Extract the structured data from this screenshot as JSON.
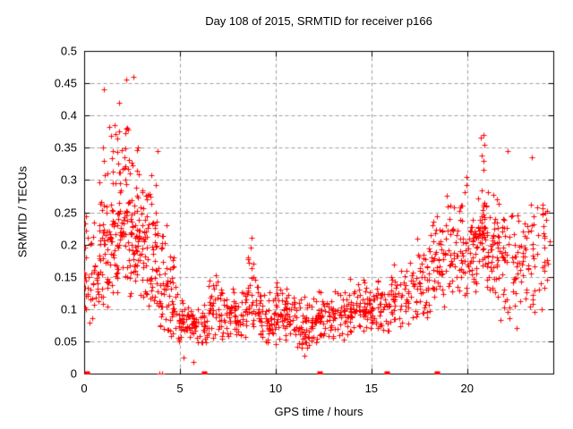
{
  "window": {
    "background": "#ffffff"
  },
  "chart_data": {
    "type": "scatter",
    "title": "Day 108 of 2015, SRMTID for receiver p166",
    "xlabel": "GPS time / hours",
    "ylabel": "SRMTID / TECUs",
    "xlim": [
      0,
      24.5
    ],
    "ylim": [
      0,
      0.5
    ],
    "xticks": {
      "values": [
        0,
        5,
        10,
        15,
        20
      ],
      "labels": [
        "0",
        "5",
        "10",
        "15",
        "20"
      ]
    },
    "yticks": {
      "values": [
        0,
        0.05,
        0.1,
        0.15,
        0.2,
        0.25,
        0.3,
        0.35,
        0.4,
        0.45,
        0.5
      ],
      "labels": [
        "0",
        "0.05",
        "0.1",
        "0.15",
        "0.2",
        "0.25",
        "0.3",
        "0.35",
        "0.4",
        "0.45",
        "0.5"
      ]
    },
    "grid": true,
    "legend": "none",
    "marker": "plus",
    "marker_color": "#ff0000",
    "axis_color": "#000000",
    "grid_color": "#a0a0a0",
    "seed": 108,
    "point_bins_format": [
      "hour_start",
      "hour_end",
      "y_min",
      "y_max",
      "count",
      "columns",
      "skew"
    ],
    "point_bins": [
      [
        0.0,
        0.35,
        0.06,
        0.26,
        22,
        2,
        1.2
      ],
      [
        0.35,
        0.8,
        0.08,
        0.25,
        24,
        3,
        1.2
      ],
      [
        0.8,
        1.3,
        0.1,
        0.44,
        46,
        4,
        1.5
      ],
      [
        1.3,
        1.8,
        0.11,
        0.42,
        50,
        4,
        1.4
      ],
      [
        1.8,
        2.35,
        0.12,
        0.46,
        56,
        4,
        1.4
      ],
      [
        2.35,
        2.85,
        0.11,
        0.42,
        54,
        4,
        1.4
      ],
      [
        2.85,
        3.35,
        0.1,
        0.35,
        44,
        4,
        1.3
      ],
      [
        3.35,
        3.85,
        0.08,
        0.34,
        40,
        4,
        1.4
      ],
      [
        3.85,
        4.35,
        0.06,
        0.25,
        34,
        4,
        1.4
      ],
      [
        4.35,
        4.85,
        0.05,
        0.19,
        34,
        4,
        1.3
      ],
      [
        4.85,
        5.5,
        0.04,
        0.13,
        40,
        5,
        1.1
      ],
      [
        5.5,
        6.5,
        0.04,
        0.12,
        52,
        6,
        1.1
      ],
      [
        6.5,
        7.5,
        0.05,
        0.16,
        56,
        6,
        1.2
      ],
      [
        7.5,
        8.5,
        0.05,
        0.14,
        56,
        6,
        1.1
      ],
      [
        8.5,
        9.1,
        0.06,
        0.21,
        32,
        3,
        1.4
      ],
      [
        9.1,
        10.0,
        0.04,
        0.14,
        58,
        6,
        1.1
      ],
      [
        10.0,
        11.0,
        0.05,
        0.15,
        60,
        6,
        1.2
      ],
      [
        11.0,
        12.0,
        0.03,
        0.12,
        58,
        6,
        1.1
      ],
      [
        12.0,
        13.0,
        0.04,
        0.13,
        58,
        6,
        1.1
      ],
      [
        13.0,
        14.0,
        0.05,
        0.15,
        56,
        6,
        1.2
      ],
      [
        14.0,
        15.0,
        0.06,
        0.18,
        54,
        6,
        1.3
      ],
      [
        15.0,
        16.0,
        0.06,
        0.16,
        50,
        6,
        1.2
      ],
      [
        16.0,
        17.0,
        0.07,
        0.18,
        50,
        6,
        1.2
      ],
      [
        17.0,
        18.0,
        0.08,
        0.22,
        50,
        5,
        1.3
      ],
      [
        18.0,
        18.7,
        0.09,
        0.26,
        40,
        4,
        1.3
      ],
      [
        18.7,
        19.3,
        0.1,
        0.3,
        36,
        3,
        1.4
      ],
      [
        19.3,
        20.0,
        0.12,
        0.32,
        40,
        3,
        1.4
      ],
      [
        20.0,
        20.5,
        0.12,
        0.28,
        36,
        3,
        1.3
      ],
      [
        20.5,
        21.0,
        0.13,
        0.37,
        46,
        3,
        1.4
      ],
      [
        21.0,
        21.5,
        0.12,
        0.3,
        40,
        3,
        1.3
      ],
      [
        21.5,
        22.3,
        0.08,
        0.31,
        46,
        4,
        1.3
      ],
      [
        22.3,
        23.2,
        0.1,
        0.27,
        46,
        4,
        1.2
      ],
      [
        23.2,
        24.3,
        0.09,
        0.33,
        44,
        4,
        1.3
      ]
    ],
    "extra_points": [
      [
        2.55,
        0.46
      ],
      [
        1.05,
        0.44
      ],
      [
        2.2,
        0.455
      ],
      [
        3.83,
        0.345
      ],
      [
        20.85,
        0.37
      ],
      [
        20.9,
        0.355
      ],
      [
        22.1,
        0.345
      ],
      [
        23.4,
        0.335
      ],
      [
        8.75,
        0.21
      ],
      [
        8.7,
        0.195
      ],
      [
        5.7,
        0.018
      ],
      [
        5.2,
        0.025
      ],
      [
        11.5,
        0.028
      ],
      [
        22.6,
        0.07
      ],
      [
        23.9,
        0.1
      ],
      [
        0.1,
        0.1
      ],
      [
        0.05,
        0.15
      ],
      [
        24.1,
        0.25
      ],
      [
        24.2,
        0.17
      ]
    ],
    "zero_square_hours": [
      0.15,
      6.28,
      12.3,
      15.8,
      18.42
    ],
    "zero_plus_hours": [
      3.95,
      4.08
    ]
  }
}
